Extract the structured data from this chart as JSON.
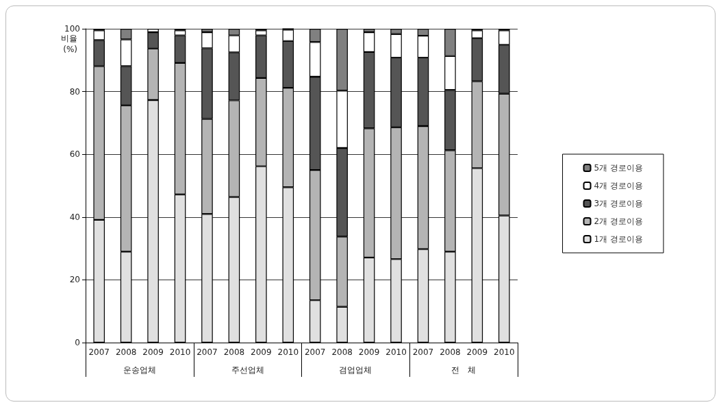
{
  "chart_data": {
    "type": "bar",
    "stacked": true,
    "ylabel": "비율 (%)",
    "categories": [
      "2007",
      "2008",
      "2009",
      "2010",
      "2007",
      "2008",
      "2009",
      "2010",
      "2007",
      "2008",
      "2009",
      "2010",
      "2007",
      "2008",
      "2009",
      "2010"
    ],
    "annotations": [
      "운송업체",
      "주선업체",
      "겸업업체",
      "전   체"
    ],
    "series": [
      {
        "name": "1개 경로이용",
        "color": "#e0e0e0",
        "values": [
          39.1,
          29.0,
          77.3,
          47.2,
          41.0,
          46.4,
          56.2,
          49.5,
          13.5,
          11.4,
          27.1,
          26.6,
          29.8,
          29.0,
          55.6,
          40.5
        ]
      },
      {
        "name": "2개 경로이용",
        "color": "#b4b4b4",
        "values": [
          49.0,
          46.6,
          16.4,
          41.9,
          30.3,
          30.8,
          28.1,
          31.7,
          41.5,
          22.4,
          41.2,
          42.0,
          39.2,
          32.3,
          27.7,
          38.8
        ]
      },
      {
        "name": "3개 경로이용",
        "color": "#555555",
        "values": [
          8.3,
          12.5,
          5.2,
          8.8,
          22.5,
          15.3,
          13.6,
          14.9,
          29.7,
          28.2,
          24.3,
          22.2,
          21.8,
          19.2,
          13.7,
          15.6
        ]
      },
      {
        "name": "4개 경로이용",
        "color": "#ffffff",
        "values": [
          3.1,
          8.5,
          1.1,
          1.6,
          5.1,
          5.4,
          1.6,
          3.6,
          11.1,
          18.3,
          6.3,
          7.5,
          7.0,
          10.8,
          2.5,
          4.6
        ]
      },
      {
        "name": "5개 경로이용",
        "color": "#808080",
        "values": [
          0.5,
          3.4,
          0.2,
          0.5,
          1.1,
          2.1,
          0.5,
          0.5,
          4.2,
          19.7,
          1.1,
          1.7,
          2.2,
          8.7,
          0.5,
          0.5
        ]
      }
    ],
    "ylim": [
      0,
      100
    ],
    "yticks": [
      0,
      20,
      40,
      60,
      80,
      100
    ],
    "grid": "y",
    "legend": "right"
  }
}
